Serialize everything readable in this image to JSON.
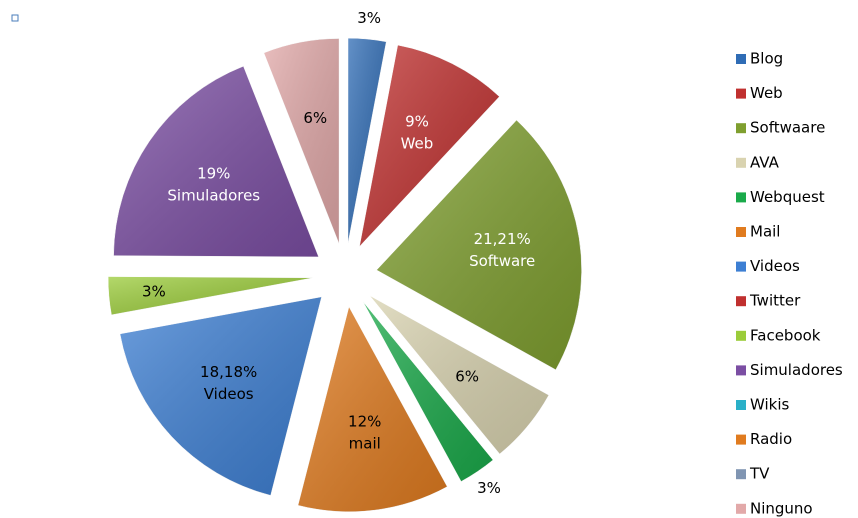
{
  "chart_data": {
    "type": "pie",
    "categories": [
      "Blog",
      "Web",
      "Softwaare",
      "AVA",
      "Webquest",
      "Mail",
      "Videos",
      "Twitter",
      "Facebook",
      "Simuladores",
      "Wikis",
      "Radio",
      "TV",
      "Ninguno"
    ],
    "values": [
      3,
      9,
      21.21,
      6,
      3,
      12,
      18.18,
      0,
      3,
      19,
      0,
      0,
      0,
      6
    ],
    "value_labels": [
      "3%",
      "9%",
      "21,21%",
      "6%",
      "3%",
      "12%",
      "18,18%",
      null,
      "3%",
      "19%",
      null,
      null,
      null,
      "6%"
    ],
    "label_names": [
      null,
      "Web",
      "Software",
      null,
      null,
      "mail",
      "Videos",
      null,
      null,
      "Simuladores",
      null,
      null,
      null,
      null
    ],
    "colors": [
      "#2f6cb5",
      "#c0302f",
      "#7f9f2f",
      "#d9d3b0",
      "#1aaa4a",
      "#e07b1f",
      "#3d7fd3",
      "#c0302f",
      "#9bcc3a",
      "#7b4ea3",
      "#2ab0c8",
      "#e07b1f",
      "#8095b2",
      "#e2a9a9"
    ],
    "label_colors": [
      "#000",
      "#fff",
      "#fff",
      "#000",
      "#000",
      "#000",
      "#000",
      "#000",
      "#000",
      "#fff",
      "#000",
      "#000",
      "#000",
      "#000"
    ],
    "legend": "right"
  }
}
